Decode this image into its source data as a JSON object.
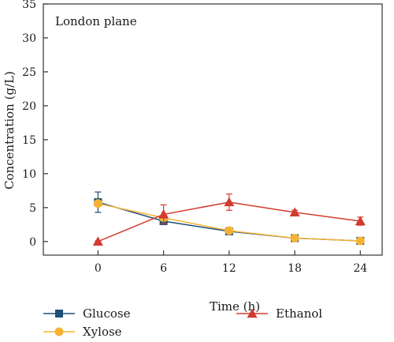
{
  "chart_data": {
    "type": "line",
    "annotation": "London plane",
    "xlabel": "Time (h)",
    "ylabel": "Concentration (g/L)",
    "x": [
      0,
      6,
      12,
      18,
      24
    ],
    "xlim": [
      -5,
      26
    ],
    "ylim": [
      -2,
      35
    ],
    "xticks": [
      0,
      6,
      12,
      18,
      24
    ],
    "yticks": [
      0,
      5,
      10,
      15,
      20,
      25,
      30,
      35
    ],
    "grid": false,
    "legend_position": "bottom",
    "series": [
      {
        "name": "Glucose",
        "color": "#1f4e79",
        "marker": "square",
        "values": [
          5.8,
          3.0,
          1.5,
          0.5,
          0.1
        ],
        "errors": [
          1.5,
          0.5,
          0.3,
          0.2,
          0.1
        ]
      },
      {
        "name": "Xylose",
        "color": "#f5b335",
        "marker": "circle",
        "values": [
          5.6,
          3.5,
          1.6,
          0.5,
          0.1
        ],
        "errors": [
          0.4,
          0.4,
          0.3,
          0.2,
          0.1
        ]
      },
      {
        "name": "Ethanol",
        "color": "#d33b2f",
        "marker": "triangle",
        "values": [
          0.0,
          4.0,
          5.8,
          4.3,
          3.0
        ],
        "errors": [
          0.1,
          1.4,
          1.2,
          0.3,
          0.6
        ]
      }
    ]
  }
}
